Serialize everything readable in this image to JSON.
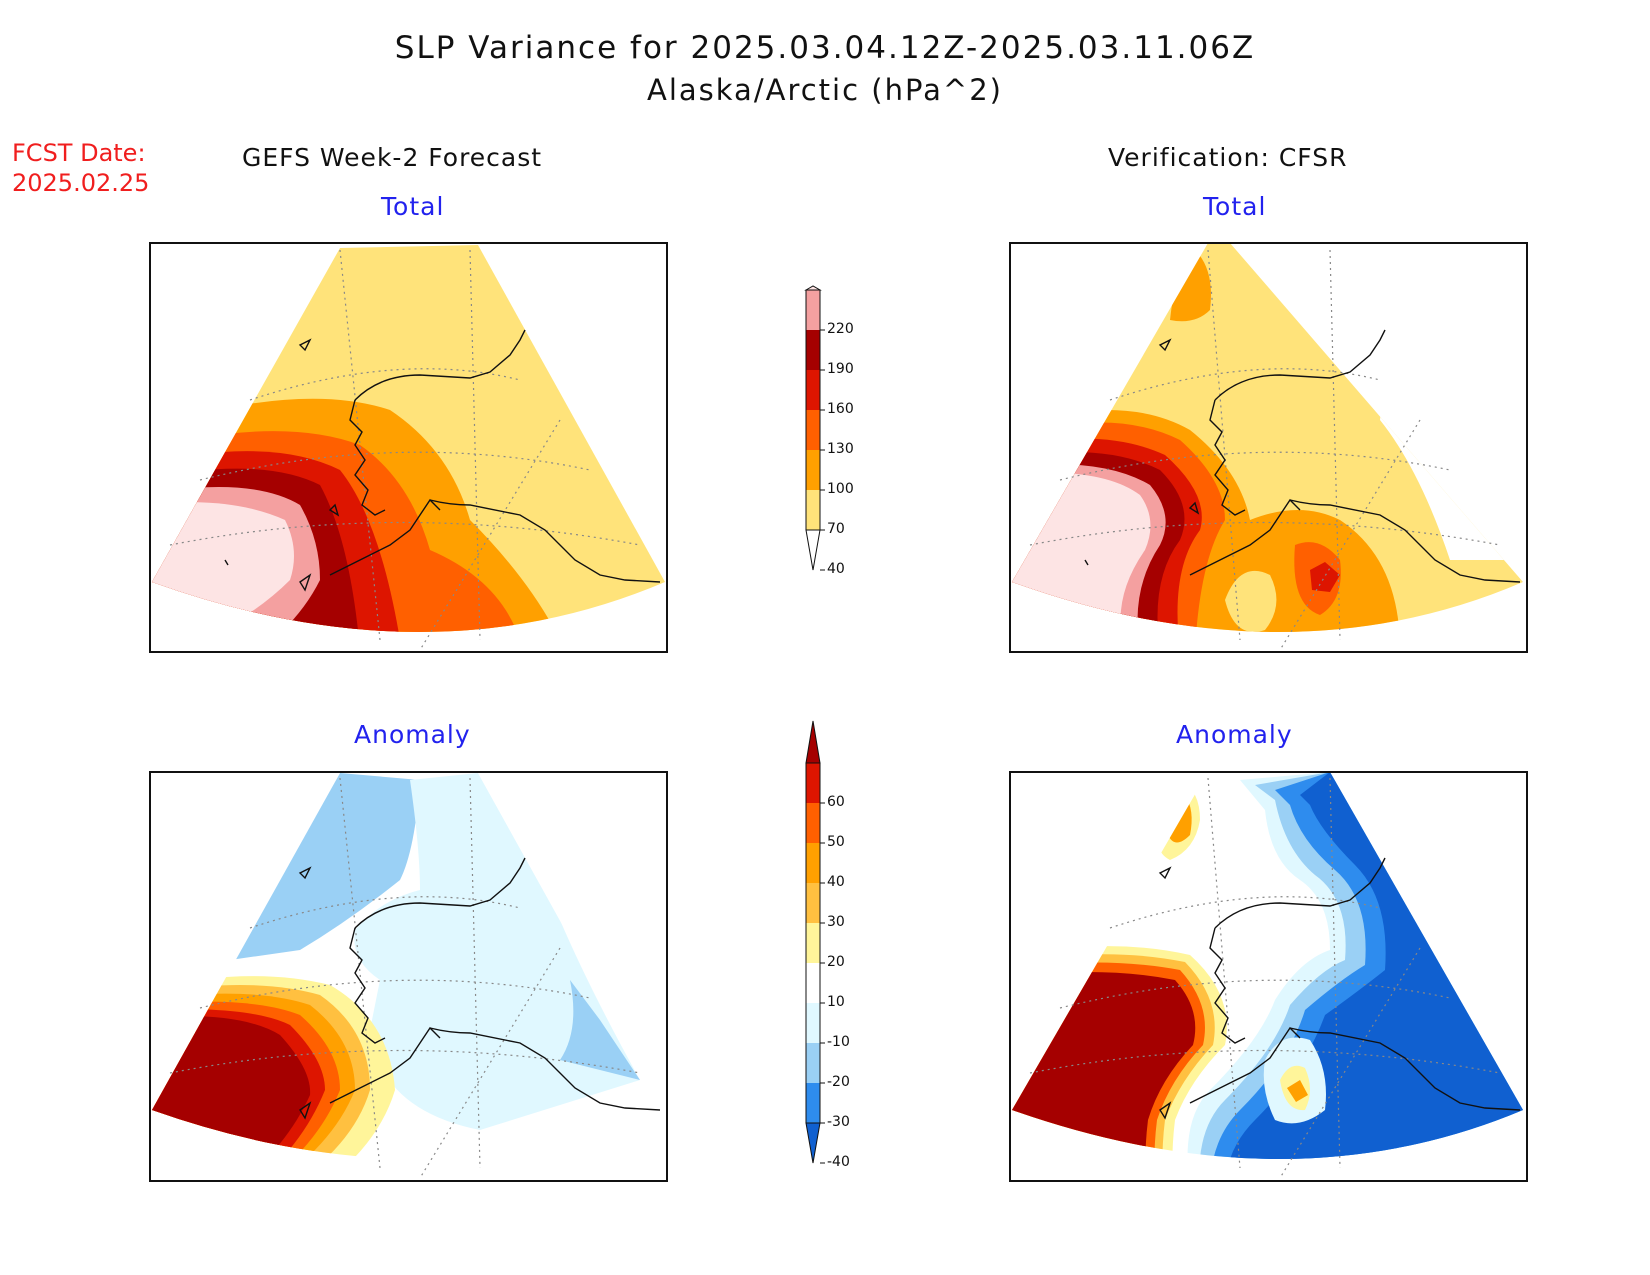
{
  "header": {
    "title": "SLP Variance for 2025.03.04.12Z-2025.03.11.06Z",
    "subtitle": "Alaska/Arctic (hPa^2)",
    "fcst_line1": "FCST Date:",
    "fcst_line2": "2025.02.25"
  },
  "columns": {
    "left_title": "GEFS Week-2 Forecast",
    "right_title": "Verification: CFSR"
  },
  "panels": {
    "top_left": "Total",
    "top_right": "Total",
    "bottom_left": "Anomaly",
    "bottom_right": "Anomaly"
  },
  "colorbar_total": {
    "labels": [
      "220",
      "190",
      "160",
      "130",
      "100",
      "70",
      "40"
    ],
    "colors": {
      "above_220": "#fde4e4",
      "190_220": "#f4a0a0",
      "160_190": "#a50000",
      "130_160": "#dd1500",
      "100_130": "#ff6000",
      "70_100": "#ffa000",
      "40_70": "#ffe37a",
      "below_40": "#ffffff"
    }
  },
  "colorbar_anomaly": {
    "labels": [
      "60",
      "50",
      "40",
      "30",
      "20",
      "10",
      "-10",
      "-20",
      "-30",
      "-40"
    ],
    "colors": {
      "above_60": "#a50000",
      "50_60": "#dd1500",
      "40_50": "#ff6000",
      "30_40": "#ffa000",
      "20_30": "#ffc040",
      "10_20": "#fff59a",
      "m10_10": "#ffffff",
      "m20_m10": "#e0f8ff",
      "m30_m20": "#9ad0f5",
      "m40_m30": "#2e8cee",
      "below_m40": "#1060d0"
    }
  }
}
